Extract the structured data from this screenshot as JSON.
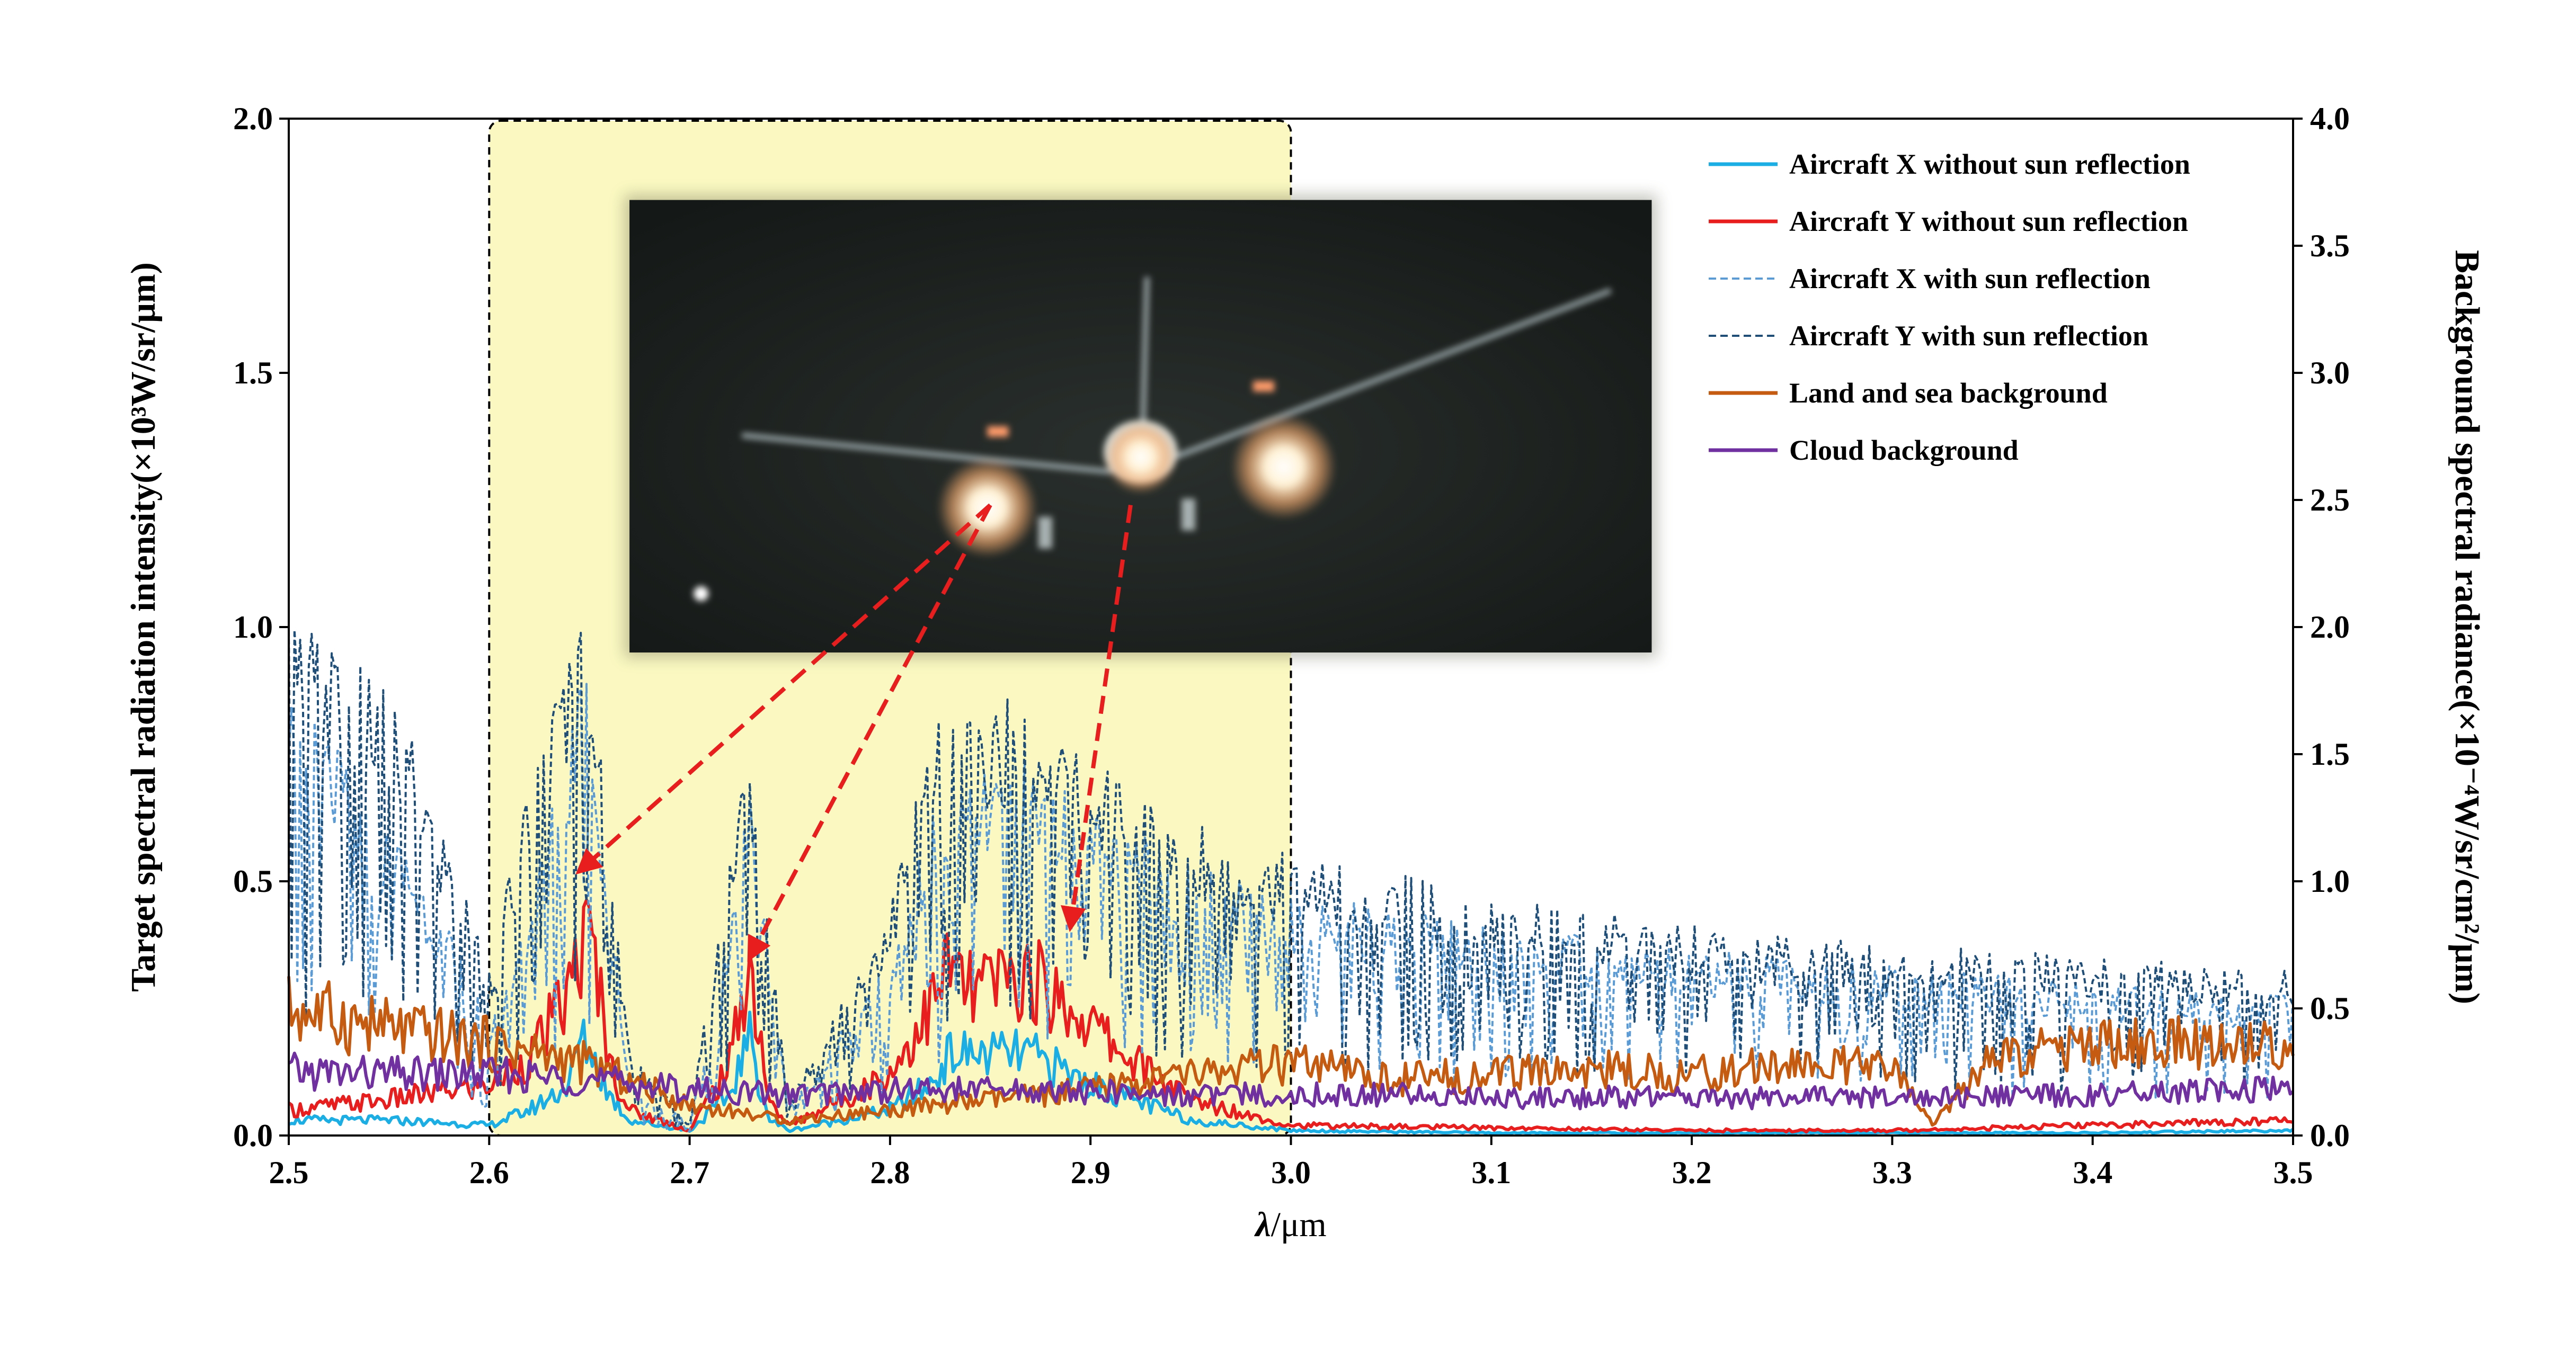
{
  "chart_data": {
    "type": "line",
    "title": "",
    "xlabel_symbol": "λ",
    "xlabel_unit": "/μm",
    "ylabel_left": "Target spectral radiation intensity(×10³W/sr/μm)",
    "ylabel_right": "Background spectral radiance(×10⁻⁴W/sr/cm²/μm)",
    "xlim": [
      2.5,
      3.5
    ],
    "ylim_left": [
      0,
      2.0
    ],
    "ylim_right": [
      0,
      4.0
    ],
    "xticks": [
      "2.5",
      "2.6",
      "2.7",
      "2.8",
      "2.9",
      "3.0",
      "3.1",
      "3.2",
      "3.3",
      "3.4",
      "3.5"
    ],
    "yticks_left": [
      "0.0",
      "0.5",
      "1.0",
      "1.5",
      "2.0"
    ],
    "yticks_right": [
      "0.0",
      "0.5",
      "1.0",
      "1.5",
      "2.0",
      "2.5",
      "3.0",
      "3.5",
      "4.0"
    ],
    "grid": false,
    "legend_position": "top-right",
    "highlight_region": {
      "x": [
        2.6,
        3.0
      ],
      "color": "#fbf9c1",
      "border": "dashed"
    },
    "inset": {
      "content": "aircraft-photo",
      "x_range": [
        2.67,
        3.18
      ],
      "y_range_left": [
        0.95,
        1.84
      ]
    },
    "annotation_arrows": [
      {
        "from_x": 2.85,
        "from_y": 1.24,
        "to_x": 2.645,
        "to_y": 0.52
      },
      {
        "from_x": 2.85,
        "from_y": 1.24,
        "to_x": 2.73,
        "to_y": 0.35
      },
      {
        "from_x": 2.92,
        "from_y": 1.24,
        "to_x": 2.89,
        "to_y": 0.41
      }
    ],
    "series": [
      {
        "name": "Aircraft X without sun reflection",
        "axis": "left",
        "color": "#1aaee5",
        "dash": "solid",
        "x": [
          2.5,
          2.55,
          2.6,
          2.62,
          2.64,
          2.645,
          2.65,
          2.66,
          2.67,
          2.7,
          2.72,
          2.725,
          2.73,
          2.735,
          2.74,
          2.75,
          2.8,
          2.82,
          2.83,
          2.85,
          2.87,
          2.9,
          2.95,
          3.0,
          3.1,
          3.2,
          3.3,
          3.4,
          3.5
        ],
        "y": [
          0.03,
          0.03,
          0.02,
          0.05,
          0.1,
          0.19,
          0.17,
          0.08,
          0.03,
          0.01,
          0.08,
          0.14,
          0.19,
          0.1,
          0.03,
          0.01,
          0.05,
          0.1,
          0.16,
          0.16,
          0.16,
          0.1,
          0.03,
          0.01,
          0.005,
          0.005,
          0.005,
          0.005,
          0.01
        ]
      },
      {
        "name": "Aircraft Y without sun reflection",
        "axis": "left",
        "color": "#e81e1e",
        "dash": "solid",
        "x": [
          2.5,
          2.55,
          2.6,
          2.62,
          2.64,
          2.645,
          2.65,
          2.655,
          2.66,
          2.67,
          2.7,
          2.72,
          2.725,
          2.73,
          2.735,
          2.74,
          2.75,
          2.8,
          2.82,
          2.83,
          2.84,
          2.85,
          2.87,
          2.9,
          2.92,
          2.95,
          3.0,
          3.1,
          3.2,
          3.3,
          3.4,
          3.5
        ],
        "y": [
          0.05,
          0.07,
          0.1,
          0.15,
          0.28,
          0.37,
          0.38,
          0.3,
          0.14,
          0.05,
          0.01,
          0.14,
          0.25,
          0.33,
          0.2,
          0.06,
          0.02,
          0.12,
          0.25,
          0.34,
          0.28,
          0.3,
          0.31,
          0.22,
          0.15,
          0.07,
          0.02,
          0.015,
          0.01,
          0.01,
          0.02,
          0.03
        ]
      },
      {
        "name": "Aircraft X with sun reflection",
        "axis": "left",
        "color": "#5b9bd5",
        "dash": "dashed",
        "x": [
          2.5,
          2.52,
          2.54,
          2.56,
          2.58,
          2.6,
          2.62,
          2.64,
          2.645,
          2.65,
          2.66,
          2.67,
          2.7,
          2.72,
          2.73,
          2.74,
          2.75,
          2.8,
          2.82,
          2.84,
          2.86,
          2.88,
          2.9,
          2.95,
          3.0,
          3.1,
          3.2,
          3.3,
          3.4,
          3.5
        ],
        "y": [
          0.75,
          0.7,
          0.55,
          0.5,
          0.35,
          0.2,
          0.4,
          0.7,
          0.85,
          0.8,
          0.4,
          0.1,
          0.02,
          0.4,
          0.6,
          0.3,
          0.05,
          0.3,
          0.55,
          0.6,
          0.65,
          0.62,
          0.55,
          0.48,
          0.42,
          0.36,
          0.32,
          0.29,
          0.26,
          0.24
        ]
      },
      {
        "name": "Aircraft Y with sun reflection",
        "axis": "left",
        "color": "#1f4e79",
        "dash": "dashed",
        "x": [
          2.5,
          2.52,
          2.54,
          2.56,
          2.58,
          2.6,
          2.62,
          2.64,
          2.645,
          2.65,
          2.66,
          2.67,
          2.7,
          2.72,
          2.73,
          2.74,
          2.75,
          2.8,
          2.82,
          2.84,
          2.86,
          2.88,
          2.9,
          2.95,
          3.0,
          3.1,
          3.2,
          3.3,
          3.4,
          3.5
        ],
        "y": [
          0.9,
          0.85,
          0.8,
          0.7,
          0.5,
          0.3,
          0.6,
          0.85,
          0.9,
          0.88,
          0.5,
          0.15,
          0.02,
          0.5,
          0.68,
          0.35,
          0.06,
          0.4,
          0.7,
          0.74,
          0.75,
          0.72,
          0.65,
          0.55,
          0.48,
          0.42,
          0.36,
          0.33,
          0.31,
          0.29
        ]
      },
      {
        "name": "Land and sea background",
        "axis": "right",
        "color": "#c55a11",
        "dash": "solid",
        "x": [
          2.5,
          2.55,
          2.6,
          2.65,
          2.7,
          2.75,
          2.8,
          2.85,
          2.9,
          2.95,
          3.0,
          3.05,
          3.1,
          3.15,
          3.2,
          3.25,
          3.3,
          3.32,
          3.35,
          3.4,
          3.45,
          3.5
        ],
        "y": [
          0.5,
          0.42,
          0.36,
          0.28,
          0.12,
          0.06,
          0.1,
          0.14,
          0.18,
          0.24,
          0.28,
          0.22,
          0.24,
          0.26,
          0.24,
          0.28,
          0.26,
          0.05,
          0.3,
          0.36,
          0.36,
          0.36
        ]
      },
      {
        "name": "Cloud background",
        "axis": "right",
        "color": "#7030a0",
        "dash": "solid",
        "x": [
          2.5,
          2.55,
          2.6,
          2.65,
          2.7,
          2.75,
          2.8,
          2.85,
          2.9,
          2.95,
          3.0,
          3.05,
          3.1,
          3.15,
          3.2,
          3.25,
          3.3,
          3.35,
          3.4,
          3.45,
          3.5
        ],
        "y": [
          0.25,
          0.24,
          0.24,
          0.22,
          0.18,
          0.16,
          0.18,
          0.18,
          0.17,
          0.16,
          0.16,
          0.16,
          0.15,
          0.15,
          0.15,
          0.15,
          0.15,
          0.15,
          0.16,
          0.17,
          0.18
        ]
      }
    ]
  }
}
